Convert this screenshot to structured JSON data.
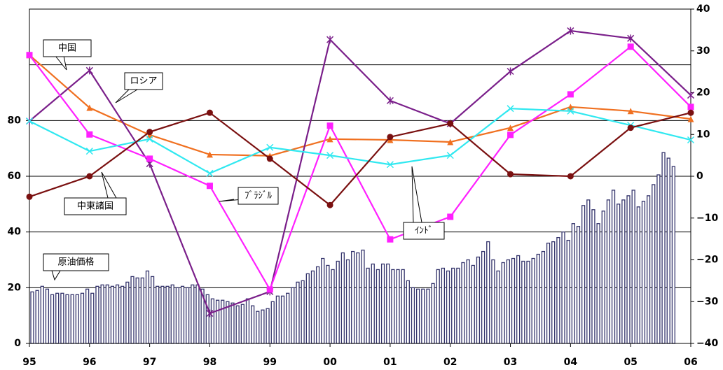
{
  "chart_data": {
    "type": "bar-line",
    "categories": [
      "95",
      "96",
      "97",
      "98",
      "99",
      "00",
      "01",
      "02",
      "03",
      "04",
      "05",
      "06"
    ],
    "ylim": [
      0,
      120
    ],
    "yticks": [
      0,
      20,
      40,
      60,
      80
    ],
    "ygrid": [
      20,
      40,
      60,
      80,
      100
    ],
    "y2lim": [
      -40,
      40
    ],
    "y2ticks": [
      {
        "value": -40,
        "label": "−40"
      },
      {
        "value": -30,
        "label": "−30"
      },
      {
        "value": -20,
        "label": "−20"
      },
      {
        "value": -10,
        "label": "−10"
      },
      0,
      10,
      20,
      30,
      40
    ],
    "bars": {
      "name": "原油価格",
      "color": "#33336b",
      "values": [
        18.5,
        19,
        20.5,
        19.5,
        17.5,
        18,
        18,
        17.5,
        17.5,
        17.5,
        18,
        19.5,
        18,
        20.5,
        21,
        21,
        20.5,
        21,
        20.5,
        22,
        24,
        23.5,
        23.5,
        26,
        24,
        20.5,
        20.5,
        20.5,
        21,
        20,
        20.5,
        20,
        21,
        21,
        19.5,
        17.5,
        16,
        15.5,
        15.5,
        15,
        14.5,
        13.5,
        14,
        16,
        13.5,
        11.5,
        12,
        12.5,
        15,
        17,
        17,
        18,
        20,
        22,
        22.5,
        25,
        26,
        27.5,
        30.5,
        28,
        26.5,
        29.5,
        32.5,
        30,
        33,
        32.5,
        33.5,
        27,
        28.5,
        26.5,
        28.5,
        28.5,
        26.5,
        26.5,
        26.5,
        22.5,
        20,
        19.5,
        19.5,
        19.5,
        21.5,
        26.5,
        27,
        26,
        27,
        27,
        29,
        30,
        28,
        31,
        33,
        36.5,
        30,
        26,
        29,
        30,
        30.5,
        31.5,
        29.5,
        29.5,
        30.5,
        32,
        33,
        36,
        36.5,
        38,
        40,
        37,
        43,
        42,
        49.5,
        51.5,
        48,
        43,
        47.5,
        51.5,
        55,
        50,
        51.5,
        53,
        55,
        49,
        51,
        53,
        57,
        60.5,
        68.5,
        66.5,
        63.5
      ]
    },
    "series": [
      {
        "name": "中国",
        "color": "#f07020",
        "marker": "triangle",
        "axis": "y2",
        "values": [
          29,
          16.4,
          9.9,
          5.2,
          4.9,
          8.9,
          8.7,
          8.2,
          11.6,
          16.6,
          15.6,
          13.7
        ]
      },
      {
        "name": "ロシア",
        "color": "#7a1f8a",
        "marker": "star",
        "axis": "y2",
        "values": [
          13.2,
          25.3,
          3.0,
          -32.8,
          -27.6,
          32.7,
          18.1,
          12.6,
          25.1,
          34.8,
          33,
          19.4
        ]
      },
      {
        "name": "ﾌﾞﾗｼﾞﾙ",
        "color": "#ff20ff",
        "marker": "square",
        "axis": "y2",
        "values": [
          29,
          10,
          4.2,
          -2.3,
          -27.1,
          12.1,
          -15.1,
          -9.7,
          9.9,
          19.6,
          31,
          16.6
        ]
      },
      {
        "name": "ｲﾝﾄﾞ",
        "color": "#30e8f0",
        "marker": "x",
        "axis": "y2",
        "values": [
          13.2,
          6,
          8.9,
          0.7,
          6.9,
          5,
          2.8,
          5,
          16.2,
          15.6,
          12.2,
          8.7
        ]
      },
      {
        "name": "中東諸国",
        "color": "#7a1010",
        "marker": "circle",
        "axis": "y2",
        "values": [
          -4.9,
          0,
          10.6,
          15.2,
          4.2,
          -6.9,
          9.4,
          12.6,
          0.5,
          0,
          11.6,
          15.2
        ]
      }
    ]
  }
}
